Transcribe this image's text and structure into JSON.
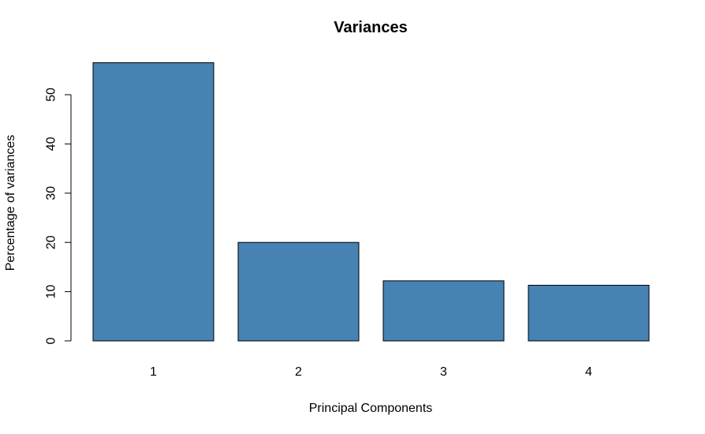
{
  "chart_data": {
    "type": "bar",
    "title": "Variances",
    "xlabel": "Principal Components",
    "ylabel": "Percentage of variances",
    "categories": [
      "1",
      "2",
      "3",
      "4"
    ],
    "values": [
      56.5,
      20.0,
      12.2,
      11.3
    ],
    "yticks": [
      0,
      10,
      20,
      30,
      40,
      50
    ],
    "ylim": [
      0,
      58
    ],
    "bar_color": "#4682B4",
    "grid": false,
    "legend": "none"
  }
}
